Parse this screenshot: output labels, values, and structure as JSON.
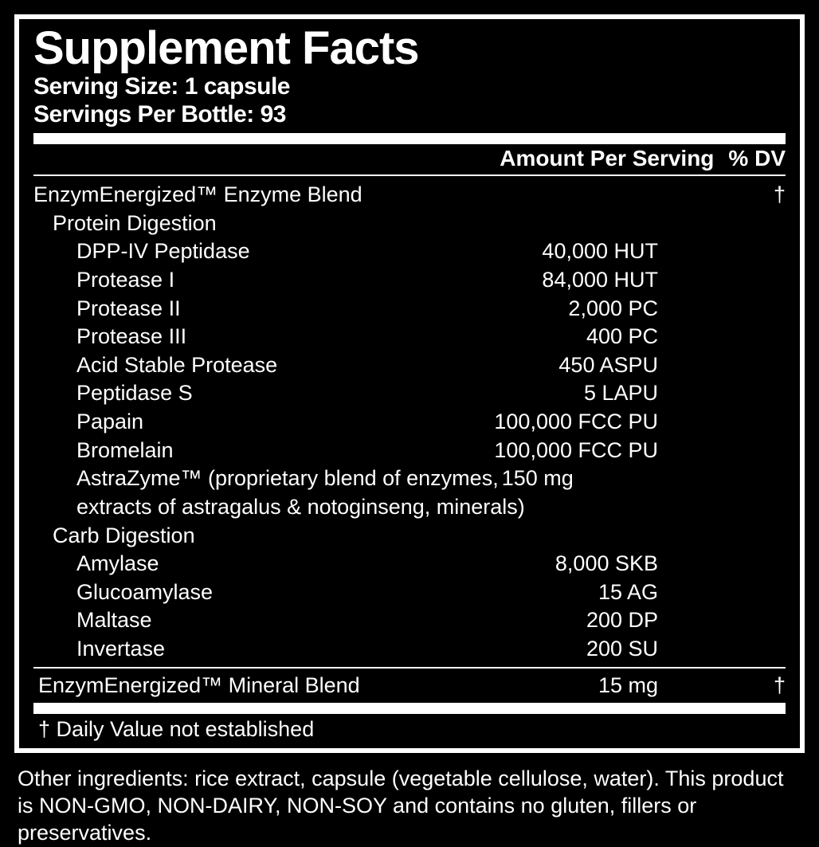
{
  "title": "Supplement Facts",
  "serving_size_label": "Serving Size: 1 capsule",
  "servings_per_label": "Servings Per Bottle: 93",
  "col_amount": "Amount Per Serving",
  "col_dv": "% DV",
  "blend_header": "EnzymEnergized™ Enzyme Blend",
  "blend_dv": "†",
  "section_protein": "Protein Digestion",
  "items_protein": [
    {
      "name": "DPP-IV Peptidase",
      "amount": "40,000 HUT"
    },
    {
      "name": "Protease I",
      "amount": "84,000 HUT"
    },
    {
      "name": "Protease II",
      "amount": "2,000 PC"
    },
    {
      "name": "Protease III",
      "amount": "400 PC"
    },
    {
      "name": "Acid Stable Protease",
      "amount": "450 ASPU"
    },
    {
      "name": "Peptidase S",
      "amount": "5 LAPU"
    },
    {
      "name": "Papain",
      "amount": "100,000 FCC PU"
    },
    {
      "name": "Bromelain",
      "amount": "100,000 FCC PU"
    }
  ],
  "astra_line1_left": "AstraZyme™ (proprietary blend of enzymes,",
  "astra_line1_right": "150 mg",
  "astra_line2": "extracts of astragalus & notoginseng, minerals)",
  "section_carb": "Carb Digestion",
  "items_carb": [
    {
      "name": "Amylase",
      "amount": "8,000 SKB"
    },
    {
      "name": "Glucoamylase",
      "amount": "15 AG"
    },
    {
      "name": "Maltase",
      "amount": "200 DP"
    },
    {
      "name": "Invertase",
      "amount": "200 SU"
    }
  ],
  "mineral_blend": "EnzymEnergized™ Mineral Blend",
  "mineral_amount": "15 mg",
  "mineral_dv": "†",
  "footnote": "† Daily Value not established",
  "other_ingredients": "Other ingredients:  rice extract, capsule (vegetable cellulose, water). This product is NON-GMO, NON-DAIRY, NON-SOY and contains no gluten, fillers or preservatives."
}
